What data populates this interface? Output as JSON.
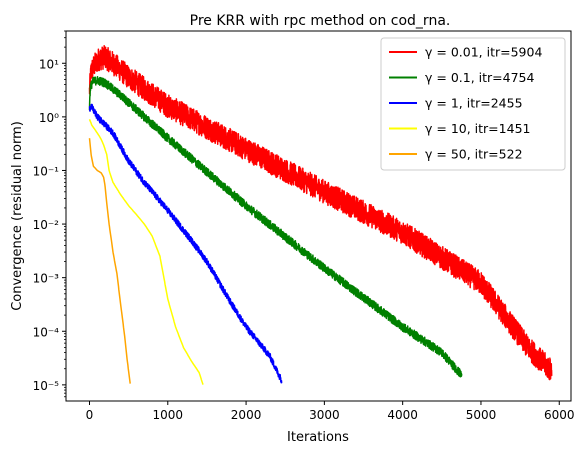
{
  "chart_data": {
    "type": "line",
    "title": "Pre KRR with rpc method on cod_rna.",
    "xlabel": "Iterations",
    "ylabel": "Convergence (residual norm)",
    "xlim": [
      -300,
      6150
    ],
    "ylim": [
      5e-06,
      40
    ],
    "yscale": "log",
    "xticks": [
      0,
      1000,
      2000,
      3000,
      4000,
      5000,
      6000
    ],
    "xtick_labels": [
      "0",
      "1000",
      "2000",
      "3000",
      "4000",
      "5000",
      "6000"
    ],
    "yticks": [
      1e-05,
      0.0001,
      0.001,
      0.01,
      0.1,
      1,
      10
    ],
    "ytick_labels": [
      "10⁻⁵",
      "10⁻⁴",
      "10⁻³",
      "10⁻²",
      "10⁻¹",
      "10⁰",
      "10¹"
    ],
    "grid": false,
    "legend_position": "upper right",
    "series": [
      {
        "name": "γ = 0.01, itr=5904",
        "color": "#ff0000",
        "noise": 0.22,
        "x": [
          0,
          20,
          60,
          120,
          200,
          300,
          500,
          1000,
          2000,
          3000,
          4000,
          5000,
          5600,
          5904
        ],
        "y": [
          3,
          7,
          9,
          12,
          13,
          10,
          5.5,
          1.6,
          0.25,
          0.04,
          0.007,
          0.0008,
          5e-05,
          1.8e-05
        ]
      },
      {
        "name": "γ = 0.1, itr=4754",
        "color": "#008000",
        "noise": 0.08,
        "x": [
          0,
          10,
          40,
          100,
          200,
          400,
          700,
          1000,
          2000,
          3000,
          4000,
          4500,
          4754
        ],
        "y": [
          1.5,
          3.5,
          4.5,
          4.8,
          4.3,
          2.5,
          1.0,
          0.4,
          0.022,
          0.0015,
          0.00012,
          4e-05,
          1.5e-05
        ]
      },
      {
        "name": "γ = 1, itr=2455",
        "color": "#0000ff",
        "noise": 0.06,
        "x": [
          0,
          20,
          100,
          300,
          500,
          700,
          1000,
          1300,
          1500,
          1800,
          2000,
          2300,
          2455
        ],
        "y": [
          1.4,
          1.6,
          1.0,
          0.5,
          0.15,
          0.06,
          0.018,
          0.005,
          0.002,
          0.00035,
          0.00012,
          3.5e-05,
          1.2e-05
        ]
      },
      {
        "name": "γ = 10, itr=1451",
        "color": "#ffff00",
        "noise": 0.0,
        "x": [
          0,
          30,
          80,
          120,
          150,
          180,
          220,
          250,
          300,
          400,
          500,
          600,
          700,
          800,
          900,
          1000,
          1100,
          1200,
          1300,
          1400,
          1451
        ],
        "y": [
          0.9,
          0.7,
          0.55,
          0.45,
          0.38,
          0.3,
          0.2,
          0.1,
          0.06,
          0.035,
          0.022,
          0.015,
          0.01,
          0.006,
          0.0025,
          0.0004,
          0.00012,
          5e-05,
          2.8e-05,
          1.7e-05,
          1e-05
        ]
      },
      {
        "name": "γ = 50, itr=522",
        "color": "#ffa500",
        "noise": 0.0,
        "x": [
          0,
          20,
          50,
          100,
          150,
          180,
          200,
          220,
          250,
          280,
          300,
          350,
          400,
          450,
          480,
          500,
          522
        ],
        "y": [
          0.4,
          0.2,
          0.12,
          0.1,
          0.09,
          0.075,
          0.05,
          0.025,
          0.01,
          0.005,
          0.003,
          0.0012,
          0.0003,
          8e-05,
          3e-05,
          1.8e-05,
          1e-05
        ]
      }
    ]
  }
}
